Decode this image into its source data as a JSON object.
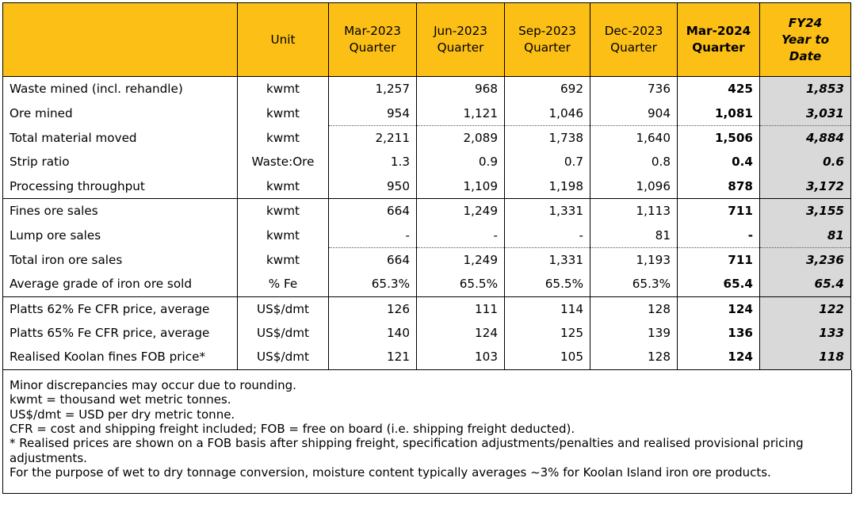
{
  "header": {
    "label": "",
    "unit": "Unit",
    "columns": [
      [
        "Mar-2023",
        "Quarter"
      ],
      [
        "Jun-2023",
        "Quarter"
      ],
      [
        "Sep-2023",
        "Quarter"
      ],
      [
        "Dec-2023",
        "Quarter"
      ],
      [
        "Mar-2024",
        "Quarter"
      ],
      [
        "FY24",
        "Year to",
        "Date"
      ]
    ]
  },
  "rows": [
    {
      "label": "Waste mined (incl. rehandle)",
      "unit": "kwmt",
      "values": [
        "1,257",
        "968",
        "692",
        "736"
      ],
      "current": "425",
      "ytd": "1,853"
    },
    {
      "label": "Ore mined",
      "unit": "kwmt",
      "values": [
        "954",
        "1,121",
        "1,046",
        "904"
      ],
      "current": "1,081",
      "ytd": "3,031"
    },
    {
      "label": "Total material moved",
      "unit": "kwmt",
      "values": [
        "2,211",
        "2,089",
        "1,738",
        "1,640"
      ],
      "current": "1,506",
      "ytd": "4,884"
    },
    {
      "label": "Strip ratio",
      "unit": "Waste:Ore",
      "values": [
        "1.3",
        "0.9",
        "0.7",
        "0.8"
      ],
      "current": "0.4",
      "ytd": "0.6"
    },
    {
      "label": "Processing throughput",
      "unit": "kwmt",
      "values": [
        "950",
        "1,109",
        "1,198",
        "1,096"
      ],
      "current": "878",
      "ytd": "3,172"
    },
    {
      "label": "Fines ore sales",
      "unit": "kwmt",
      "values": [
        "664",
        "1,249",
        "1,331",
        "1,113"
      ],
      "current": "711",
      "ytd": "3,155"
    },
    {
      "label": "Lump ore sales",
      "unit": "kwmt",
      "values": [
        "-",
        "-",
        "-",
        "81"
      ],
      "current": "-",
      "ytd": "81"
    },
    {
      "label": "Total iron ore sales",
      "unit": "kwmt",
      "values": [
        "664",
        "1,249",
        "1,331",
        "1,193"
      ],
      "current": "711",
      "ytd": "3,236"
    },
    {
      "label": "Average grade of iron ore sold",
      "unit": "% Fe",
      "values": [
        "65.3%",
        "65.5%",
        "65.5%",
        "65.3%"
      ],
      "current": "65.4",
      "ytd": "65.4"
    },
    {
      "label": "Platts 62% Fe CFR price, average",
      "unit": "US$/dmt",
      "values": [
        "126",
        "111",
        "114",
        "128"
      ],
      "current": "124",
      "ytd": "122"
    },
    {
      "label": "Platts 65% Fe CFR price, average",
      "unit": "US$/dmt",
      "values": [
        "140",
        "124",
        "125",
        "139"
      ],
      "current": "136",
      "ytd": "133"
    },
    {
      "label": "Realised Koolan fines FOB price*",
      "unit": "US$/dmt",
      "values": [
        "121",
        "103",
        "105",
        "128"
      ],
      "current": "124",
      "ytd": "118"
    }
  ],
  "notes": [
    "Minor discrepancies may occur due to rounding.",
    "kwmt = thousand wet metric tonnes.",
    "US$/dmt = USD per dry metric tonne.",
    "CFR = cost and shipping freight included; FOB = free on board (i.e. shipping freight deducted).",
    "* Realised prices are shown on a FOB basis after shipping freight, specification adjustments/penalties and realised provisional pricing adjustments.",
    "For the purpose of wet to dry tonnage conversion, moisture content typically averages ~3% for Koolan Island iron ore products."
  ]
}
